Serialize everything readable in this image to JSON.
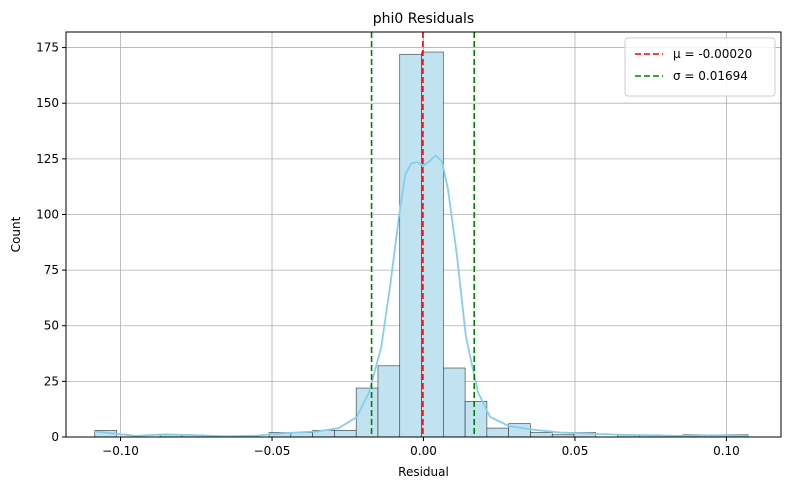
{
  "chart_data": {
    "type": "histogram",
    "title": "phi0 Residuals",
    "xlabel": "Residual",
    "ylabel": "Count",
    "xlim": [
      -0.118,
      0.118
    ],
    "ylim": [
      0,
      182
    ],
    "xticks": [
      -0.1,
      -0.05,
      0.0,
      0.05,
      0.1
    ],
    "xtick_labels": [
      "−0.10",
      "−0.05",
      "0.00",
      "0.05",
      "0.10"
    ],
    "yticks": [
      0,
      25,
      50,
      75,
      100,
      125,
      150,
      175
    ],
    "ytick_labels": [
      "0",
      "25",
      "50",
      "75",
      "100",
      "125",
      "150",
      "175"
    ],
    "grid": true,
    "legend_position": "top-right",
    "bins": {
      "start": -0.1085,
      "width": 0.00719,
      "counts": [
        3,
        0,
        0,
        1,
        1,
        0,
        0,
        0,
        2,
        2,
        3,
        3,
        22,
        32,
        172,
        173,
        31,
        16,
        4,
        6,
        2,
        1,
        2,
        0,
        1,
        1,
        0,
        1,
        1,
        1
      ]
    },
    "kde": {
      "x": [
        -0.1085,
        -0.095,
        -0.085,
        -0.075,
        -0.065,
        -0.055,
        -0.045,
        -0.035,
        -0.028,
        -0.022,
        -0.018,
        -0.014,
        -0.011,
        -0.008,
        -0.006,
        -0.004,
        -0.002,
        0.0,
        0.002,
        0.004,
        0.006,
        0.008,
        0.011,
        0.014,
        0.018,
        0.022,
        0.028,
        0.035,
        0.045,
        0.055,
        0.065,
        0.075,
        0.085,
        0.095,
        0.1075
      ],
      "y": [
        2.5,
        0.5,
        1.2,
        0.8,
        0.3,
        0.6,
        1.8,
        2.5,
        4.0,
        9.0,
        20.0,
        40.0,
        68.0,
        100.0,
        118.0,
        123.0,
        123.5,
        122.0,
        124.0,
        126.5,
        124.0,
        112.0,
        82.0,
        45.0,
        20.0,
        9.0,
        5.0,
        3.5,
        2.0,
        1.5,
        1.0,
        0.8,
        0.5,
        0.8,
        0.5
      ]
    },
    "vlines": [
      {
        "label": "μ = -0.00020",
        "x": -0.0002,
        "color": "#ff0000",
        "style": "dashed"
      },
      {
        "label": "σ = 0.01694",
        "x": -0.01714,
        "color": "#008000",
        "style": "dashed",
        "legend": false
      },
      {
        "label": "σ = 0.01694",
        "x": 0.01674,
        "color": "#008000",
        "style": "dashed"
      }
    ],
    "colors": {
      "bar_fill": "#c1e3f1",
      "bar_edge": "#333333",
      "kde": "#87ceeb",
      "grid": "#b0b0b0"
    }
  }
}
